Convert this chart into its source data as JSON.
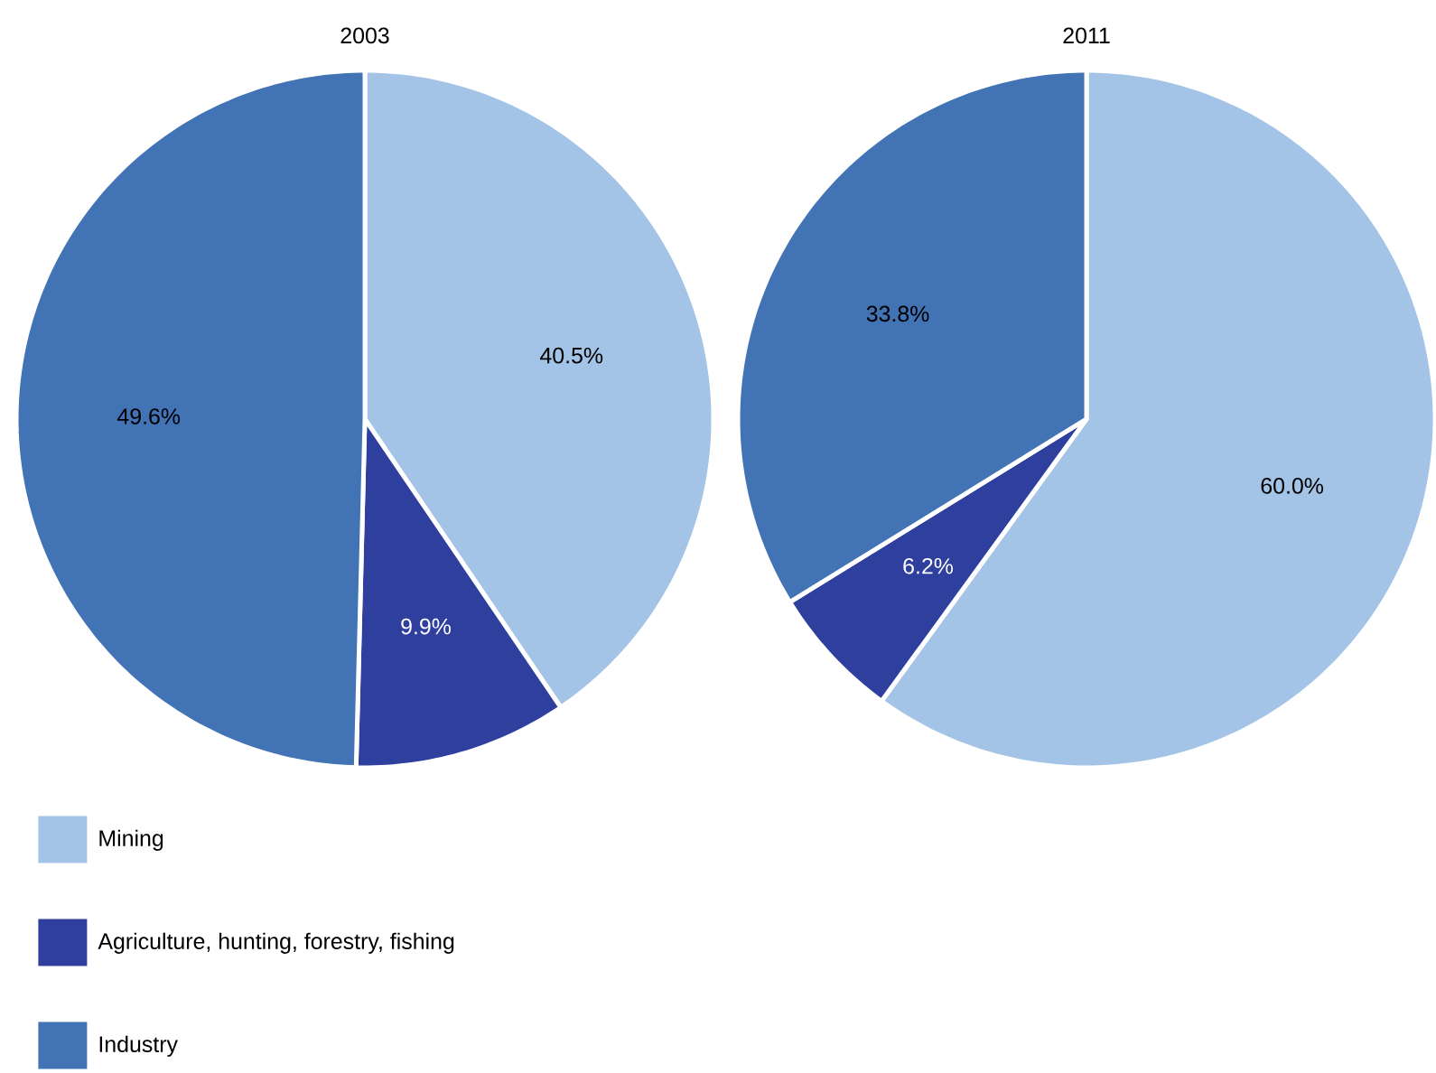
{
  "chart_data": [
    {
      "type": "pie",
      "title": "2003",
      "categories": [
        "Mining",
        "Agriculture, hunting, forestry, fishing",
        "Industry"
      ],
      "values": [
        40.5,
        9.9,
        49.6
      ],
      "value_labels": [
        "40.5%",
        "9.9%",
        "49.6%"
      ],
      "colors": [
        "#a3c4e6",
        "#2e3f9e",
        "#4173b5"
      ],
      "legend": "bottom left"
    },
    {
      "type": "pie",
      "title": "2011",
      "categories": [
        null,
        null,
        null
      ],
      "values": [
        60.0,
        6.2,
        33.8
      ],
      "value_labels": [
        "60.0%",
        "6.2%",
        "33.8%"
      ],
      "colors": [
        "#a3c4e6",
        "#2e3f9e",
        "#4173b5"
      ],
      "legend": false
    }
  ]
}
